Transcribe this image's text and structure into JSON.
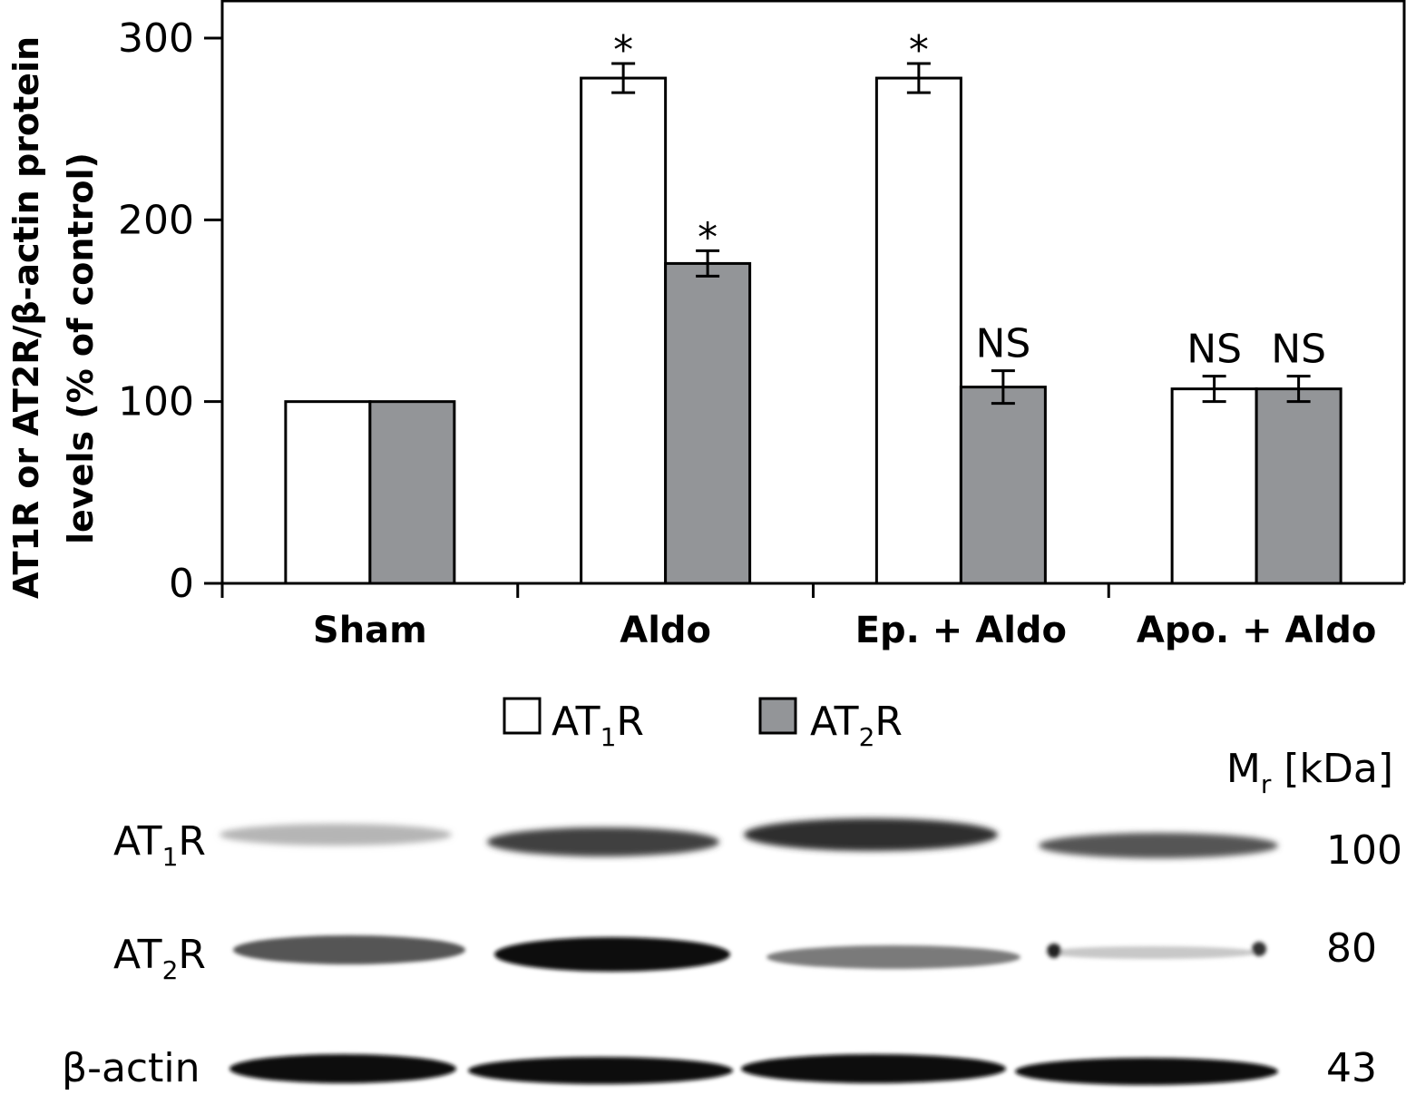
{
  "chart_data": {
    "type": "bar",
    "ylabel_line1": "AT1R or AT2R/β-actin protein",
    "ylabel_line2": "levels (% of control)",
    "ylim": [
      0,
      300
    ],
    "yticks": [
      "0",
      "100",
      "200",
      "300"
    ],
    "categories": [
      "Sham",
      "Aldo",
      "Ep. + Aldo",
      "Apo. + Aldo"
    ],
    "series": [
      {
        "name_main": "AT",
        "name_sub": "1",
        "name_end": "R",
        "name": "AT1R",
        "fill": "#ffffff",
        "values": [
          100,
          278,
          278,
          107
        ],
        "errors": [
          null,
          8,
          8,
          7
        ],
        "annotations": [
          "",
          "*",
          "*",
          "NS"
        ]
      },
      {
        "name_main": "AT",
        "name_sub": "2",
        "name_end": "R",
        "name": "AT2R",
        "fill": "#939598",
        "values": [
          100,
          176,
          108,
          107
        ],
        "errors": [
          null,
          7,
          9,
          7
        ],
        "annotations": [
          "",
          "*",
          "NS",
          "NS"
        ]
      }
    ],
    "legend_position": "bottom"
  },
  "blot": {
    "mr_label_main": "M",
    "mr_label_sub": "r",
    "mr_label_end": " [kDa]",
    "rows": [
      {
        "label_main": "AT",
        "label_sub": "1",
        "label_end": "R",
        "mass": "100"
      },
      {
        "label_main": "AT",
        "label_sub": "2",
        "label_end": "R",
        "mass": "80"
      },
      {
        "label_main": "β-actin",
        "label_sub": "",
        "label_end": "",
        "mass": "43"
      }
    ]
  }
}
